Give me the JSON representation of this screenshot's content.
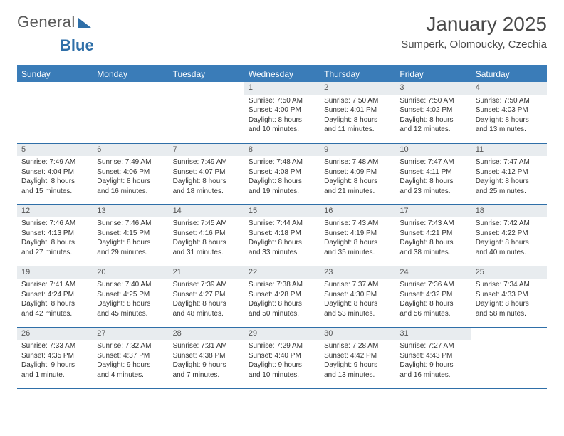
{
  "logo": {
    "part1": "General",
    "part2": "Blue"
  },
  "header": {
    "month_title": "January 2025",
    "location": "Sumperk, Olomoucky, Czechia"
  },
  "colors": {
    "header_bg": "#3a7cb8",
    "header_text": "#ffffff",
    "daynum_bg": "#e8ecef",
    "row_border": "#2f6fa8",
    "body_text": "#333333",
    "logo_blue": "#2f6fa8",
    "logo_gray": "#5a5a5a"
  },
  "typography": {
    "month_title_fontsize": 28,
    "location_fontsize": 15,
    "weekday_fontsize": 12,
    "daynum_fontsize": 11,
    "cell_fontsize": 10
  },
  "weekdays": [
    "Sunday",
    "Monday",
    "Tuesday",
    "Wednesday",
    "Thursday",
    "Friday",
    "Saturday"
  ],
  "weeks": [
    [
      null,
      null,
      null,
      {
        "n": "1",
        "sr": "Sunrise: 7:50 AM",
        "ss": "Sunset: 4:00 PM",
        "dl1": "Daylight: 8 hours",
        "dl2": "and 10 minutes."
      },
      {
        "n": "2",
        "sr": "Sunrise: 7:50 AM",
        "ss": "Sunset: 4:01 PM",
        "dl1": "Daylight: 8 hours",
        "dl2": "and 11 minutes."
      },
      {
        "n": "3",
        "sr": "Sunrise: 7:50 AM",
        "ss": "Sunset: 4:02 PM",
        "dl1": "Daylight: 8 hours",
        "dl2": "and 12 minutes."
      },
      {
        "n": "4",
        "sr": "Sunrise: 7:50 AM",
        "ss": "Sunset: 4:03 PM",
        "dl1": "Daylight: 8 hours",
        "dl2": "and 13 minutes."
      }
    ],
    [
      {
        "n": "5",
        "sr": "Sunrise: 7:49 AM",
        "ss": "Sunset: 4:04 PM",
        "dl1": "Daylight: 8 hours",
        "dl2": "and 15 minutes."
      },
      {
        "n": "6",
        "sr": "Sunrise: 7:49 AM",
        "ss": "Sunset: 4:06 PM",
        "dl1": "Daylight: 8 hours",
        "dl2": "and 16 minutes."
      },
      {
        "n": "7",
        "sr": "Sunrise: 7:49 AM",
        "ss": "Sunset: 4:07 PM",
        "dl1": "Daylight: 8 hours",
        "dl2": "and 18 minutes."
      },
      {
        "n": "8",
        "sr": "Sunrise: 7:48 AM",
        "ss": "Sunset: 4:08 PM",
        "dl1": "Daylight: 8 hours",
        "dl2": "and 19 minutes."
      },
      {
        "n": "9",
        "sr": "Sunrise: 7:48 AM",
        "ss": "Sunset: 4:09 PM",
        "dl1": "Daylight: 8 hours",
        "dl2": "and 21 minutes."
      },
      {
        "n": "10",
        "sr": "Sunrise: 7:47 AM",
        "ss": "Sunset: 4:11 PM",
        "dl1": "Daylight: 8 hours",
        "dl2": "and 23 minutes."
      },
      {
        "n": "11",
        "sr": "Sunrise: 7:47 AM",
        "ss": "Sunset: 4:12 PM",
        "dl1": "Daylight: 8 hours",
        "dl2": "and 25 minutes."
      }
    ],
    [
      {
        "n": "12",
        "sr": "Sunrise: 7:46 AM",
        "ss": "Sunset: 4:13 PM",
        "dl1": "Daylight: 8 hours",
        "dl2": "and 27 minutes."
      },
      {
        "n": "13",
        "sr": "Sunrise: 7:46 AM",
        "ss": "Sunset: 4:15 PM",
        "dl1": "Daylight: 8 hours",
        "dl2": "and 29 minutes."
      },
      {
        "n": "14",
        "sr": "Sunrise: 7:45 AM",
        "ss": "Sunset: 4:16 PM",
        "dl1": "Daylight: 8 hours",
        "dl2": "and 31 minutes."
      },
      {
        "n": "15",
        "sr": "Sunrise: 7:44 AM",
        "ss": "Sunset: 4:18 PM",
        "dl1": "Daylight: 8 hours",
        "dl2": "and 33 minutes."
      },
      {
        "n": "16",
        "sr": "Sunrise: 7:43 AM",
        "ss": "Sunset: 4:19 PM",
        "dl1": "Daylight: 8 hours",
        "dl2": "and 35 minutes."
      },
      {
        "n": "17",
        "sr": "Sunrise: 7:43 AM",
        "ss": "Sunset: 4:21 PM",
        "dl1": "Daylight: 8 hours",
        "dl2": "and 38 minutes."
      },
      {
        "n": "18",
        "sr": "Sunrise: 7:42 AM",
        "ss": "Sunset: 4:22 PM",
        "dl1": "Daylight: 8 hours",
        "dl2": "and 40 minutes."
      }
    ],
    [
      {
        "n": "19",
        "sr": "Sunrise: 7:41 AM",
        "ss": "Sunset: 4:24 PM",
        "dl1": "Daylight: 8 hours",
        "dl2": "and 42 minutes."
      },
      {
        "n": "20",
        "sr": "Sunrise: 7:40 AM",
        "ss": "Sunset: 4:25 PM",
        "dl1": "Daylight: 8 hours",
        "dl2": "and 45 minutes."
      },
      {
        "n": "21",
        "sr": "Sunrise: 7:39 AM",
        "ss": "Sunset: 4:27 PM",
        "dl1": "Daylight: 8 hours",
        "dl2": "and 48 minutes."
      },
      {
        "n": "22",
        "sr": "Sunrise: 7:38 AM",
        "ss": "Sunset: 4:28 PM",
        "dl1": "Daylight: 8 hours",
        "dl2": "and 50 minutes."
      },
      {
        "n": "23",
        "sr": "Sunrise: 7:37 AM",
        "ss": "Sunset: 4:30 PM",
        "dl1": "Daylight: 8 hours",
        "dl2": "and 53 minutes."
      },
      {
        "n": "24",
        "sr": "Sunrise: 7:36 AM",
        "ss": "Sunset: 4:32 PM",
        "dl1": "Daylight: 8 hours",
        "dl2": "and 56 minutes."
      },
      {
        "n": "25",
        "sr": "Sunrise: 7:34 AM",
        "ss": "Sunset: 4:33 PM",
        "dl1": "Daylight: 8 hours",
        "dl2": "and 58 minutes."
      }
    ],
    [
      {
        "n": "26",
        "sr": "Sunrise: 7:33 AM",
        "ss": "Sunset: 4:35 PM",
        "dl1": "Daylight: 9 hours",
        "dl2": "and 1 minute."
      },
      {
        "n": "27",
        "sr": "Sunrise: 7:32 AM",
        "ss": "Sunset: 4:37 PM",
        "dl1": "Daylight: 9 hours",
        "dl2": "and 4 minutes."
      },
      {
        "n": "28",
        "sr": "Sunrise: 7:31 AM",
        "ss": "Sunset: 4:38 PM",
        "dl1": "Daylight: 9 hours",
        "dl2": "and 7 minutes."
      },
      {
        "n": "29",
        "sr": "Sunrise: 7:29 AM",
        "ss": "Sunset: 4:40 PM",
        "dl1": "Daylight: 9 hours",
        "dl2": "and 10 minutes."
      },
      {
        "n": "30",
        "sr": "Sunrise: 7:28 AM",
        "ss": "Sunset: 4:42 PM",
        "dl1": "Daylight: 9 hours",
        "dl2": "and 13 minutes."
      },
      {
        "n": "31",
        "sr": "Sunrise: 7:27 AM",
        "ss": "Sunset: 4:43 PM",
        "dl1": "Daylight: 9 hours",
        "dl2": "and 16 minutes."
      },
      null
    ]
  ]
}
